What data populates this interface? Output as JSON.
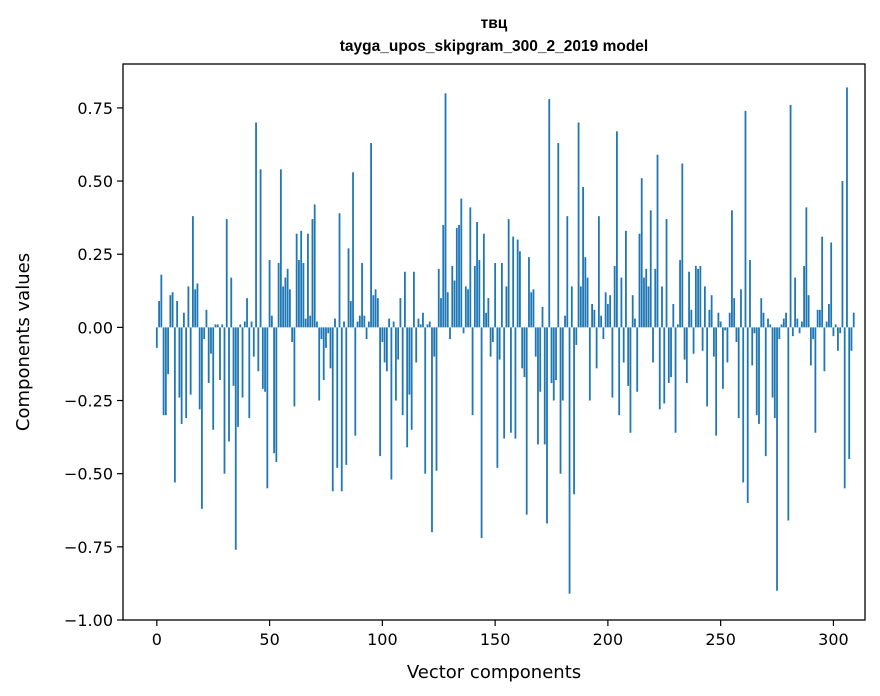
{
  "chart_data": {
    "type": "bar",
    "title": "твц",
    "subtitle": "tayga_upos_skipgram_300_2_2019 model",
    "xlabel": "Vector components",
    "ylabel": "Components values",
    "xlim": [
      -15,
      314
    ],
    "ylim": [
      -1.0,
      0.9
    ],
    "x_ticks": [
      0,
      50,
      100,
      150,
      200,
      250,
      300
    ],
    "x_tick_labels": [
      "0",
      "50",
      "100",
      "150",
      "200",
      "250",
      "300"
    ],
    "y_ticks": [
      -1.0,
      -0.75,
      -0.5,
      -0.25,
      0.0,
      0.25,
      0.5,
      0.75
    ],
    "y_tick_labels": [
      "−1.00",
      "−0.75",
      "−0.50",
      "−0.25",
      "0.00",
      "0.25",
      "0.50",
      "0.75"
    ],
    "bar_color": "#1f77b4",
    "grid": false,
    "values": [
      -0.07,
      0.09,
      0.18,
      -0.3,
      -0.3,
      -0.16,
      0.11,
      0.12,
      -0.53,
      0.09,
      -0.24,
      -0.33,
      0.05,
      -0.31,
      0.14,
      -0.23,
      0.38,
      0.13,
      0.15,
      -0.28,
      -0.62,
      -0.04,
      0.06,
      -0.19,
      -0.09,
      -0.35,
      0.01,
      0.01,
      -0.18,
      0.01,
      -0.5,
      0.37,
      -0.39,
      0.17,
      -0.2,
      -0.76,
      -0.34,
      0.01,
      -0.24,
      0.02,
      0.1,
      -0.31,
      0.02,
      -0.1,
      0.7,
      -0.15,
      0.54,
      -0.21,
      -0.22,
      -0.55,
      0.23,
      0.04,
      -0.43,
      -0.46,
      0.22,
      0.54,
      0.14,
      0.17,
      0.2,
      0.13,
      -0.05,
      -0.27,
      0.32,
      0.23,
      0.33,
      0.22,
      0.03,
      0.32,
      0.04,
      0.37,
      0.42,
      0.02,
      -0.25,
      -0.04,
      -0.18,
      -0.07,
      -0.02,
      -0.14,
      -0.56,
      0.03,
      -0.48,
      0.39,
      -0.56,
      0.02,
      -0.47,
      0.27,
      0.09,
      0.53,
      -0.37,
      0.02,
      0.04,
      0.22,
      0.04,
      -0.04,
      0.02,
      0.63,
      0.11,
      0.13,
      0.1,
      -0.44,
      -0.05,
      -0.12,
      -0.15,
      0.03,
      -0.52,
      0.02,
      -0.25,
      -0.11,
      0.1,
      -0.3,
      0.19,
      -0.41,
      -0.23,
      -0.35,
      0.19,
      -0.12,
      0.03,
      0.01,
      0.05,
      -0.5,
      0.01,
      0.02,
      -0.7,
      -0.1,
      -0.49,
      0.2,
      0.1,
      0.35,
      0.8,
      0.12,
      -0.04,
      0.21,
      0.16,
      0.34,
      0.35,
      0.44,
      -0.02,
      0.14,
      0.13,
      0.41,
      -0.3,
      0.21,
      0.36,
      0.23,
      -0.72,
      0.32,
      0.05,
      0.1,
      -0.1,
      -0.05,
      0.22,
      -0.48,
      -0.11,
      0.22,
      -0.38,
      0.14,
      0.37,
      -0.36,
      0.31,
      -0.38,
      0.3,
      0.26,
      -0.14,
      -0.17,
      -0.64,
      0.24,
      0.12,
      0.13,
      -0.1,
      -0.4,
      -0.22,
      0.07,
      -0.4,
      -0.67,
      0.78,
      -0.19,
      -0.25,
      -0.18,
      0.63,
      -0.5,
      -0.25,
      0.04,
      0.38,
      -0.91,
      0.14,
      -0.57,
      -0.06,
      0.7,
      0.14,
      0.48,
      0.24,
      0.17,
      -0.25,
      0.08,
      0.06,
      -0.14,
      0.38,
      0.04,
      -0.04,
      0.12,
      0.08,
      0.11,
      -0.24,
      0.21,
      0.67,
      -0.3,
      0.17,
      -0.12,
      0.33,
      -0.2,
      -0.36,
      0.11,
      0.03,
      -0.22,
      0.32,
      0.51,
      0.17,
      0.2,
      0.14,
      0.4,
      -0.12,
      0.2,
      0.59,
      -0.28,
      0.14,
      -0.26,
      0.37,
      -0.19,
      -0.17,
      0.08,
      -0.36,
      0.01,
      0.23,
      0.56,
      -0.11,
      -0.19,
      0.19,
      0.06,
      -0.09,
      0.21,
      0.2,
      0.21,
      -0.08,
      0.14,
      -0.27,
      0.06,
      0.11,
      -0.1,
      -0.37,
      0.05,
      0.02,
      -0.21,
      -0.01,
      -0.12,
      0.05,
      0.4,
      0.1,
      -0.05,
      -0.31,
      0.13,
      -0.53,
      0.74,
      -0.6,
      0.23,
      -0.13,
      -0.02,
      -0.3,
      -0.33,
      0.1,
      0.05,
      -0.44,
      0.03,
      0.01,
      -0.24,
      -0.31,
      -0.9,
      -0.04,
      0.01,
      0.03,
      0.05,
      -0.66,
      0.76,
      -0.03,
      0.17,
      0.03,
      -0.02,
      0.02,
      0.21,
      0.41,
      0.11,
      -0.13,
      -0.04,
      -0.36,
      0.06,
      0.06,
      0.31,
      -0.15,
      0.02,
      0.08,
      0.29,
      -0.03,
      0.01,
      -0.08,
      -0.02,
      0.5,
      -0.55,
      0.82,
      -0.45,
      -0.08,
      0.05
    ]
  }
}
